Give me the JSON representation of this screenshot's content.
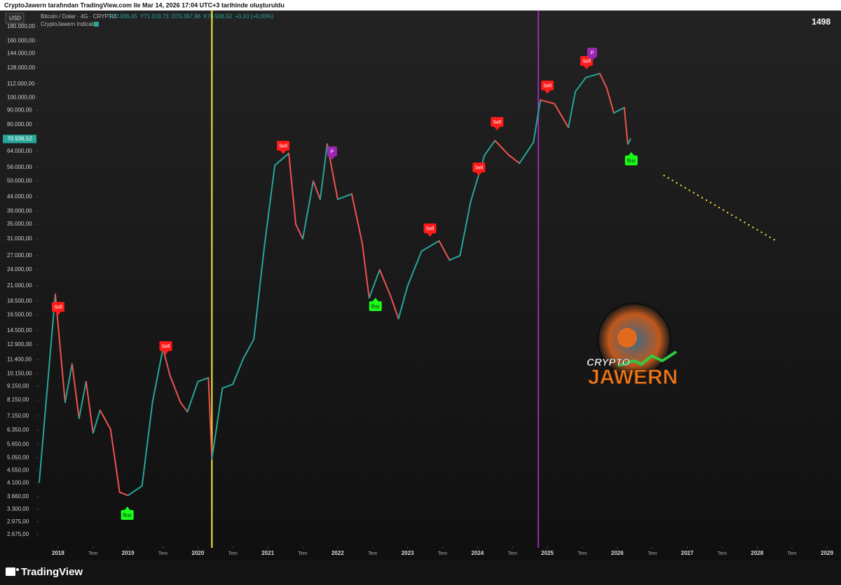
{
  "caption": "CryptoJawern tarafından TradingView.com ile Mar 14, 2026 17:04 UTC+3 tarihinde oluşturuldu",
  "footer": "TradingView",
  "chart_data": {
    "type": "line",
    "title": "Bitcoin / Dolar · 4G · CRYPTO",
    "ohlc": [
      "A70.936,45",
      "Y71.319,73",
      "D70.367,96",
      "K70.936,52",
      "+0,10 (+0,00%)"
    ],
    "indicator": "CryptoJawern Indicator",
    "currency": "USD",
    "bar_count": 1498,
    "log_scale": true,
    "grid": false,
    "up_color": "#26a69a",
    "down_color": "#ef5350",
    "last_price": {
      "value": 70936.52,
      "label": "70.936,52"
    },
    "xlim": [
      2017.72,
      2029.1
    ],
    "ylim": [
      2424,
      199800
    ],
    "xticks": [
      {
        "value": 2018,
        "label": "2018"
      },
      {
        "value": 2018.5,
        "label": "Tem"
      },
      {
        "value": 2019,
        "label": "2019"
      },
      {
        "value": 2019.5,
        "label": "Tem"
      },
      {
        "value": 2020,
        "label": "2020"
      },
      {
        "value": 2020.5,
        "label": "Tem"
      },
      {
        "value": 2021,
        "label": "2021"
      },
      {
        "value": 2021.5,
        "label": "Tem"
      },
      {
        "value": 2022,
        "label": "2022"
      },
      {
        "value": 2022.5,
        "label": "Tem"
      },
      {
        "value": 2023,
        "label": "2023"
      },
      {
        "value": 2023.5,
        "label": "Tem"
      },
      {
        "value": 2024,
        "label": "2024"
      },
      {
        "value": 2024.5,
        "label": "Tem"
      },
      {
        "value": 2025,
        "label": "2025"
      },
      {
        "value": 2025.5,
        "label": "Tem"
      },
      {
        "value": 2026,
        "label": "2026"
      },
      {
        "value": 2026.5,
        "label": "Tem"
      },
      {
        "value": 2027,
        "label": "2027"
      },
      {
        "value": 2027.5,
        "label": "Tem"
      },
      {
        "value": 2028,
        "label": "2028"
      },
      {
        "value": 2028.5,
        "label": "Tem"
      },
      {
        "value": 2029,
        "label": "2029"
      }
    ],
    "yticks": [
      {
        "value": 180000,
        "label": "180.000,00"
      },
      {
        "value": 160000,
        "label": "160.000,00"
      },
      {
        "value": 144000,
        "label": "144.000,00"
      },
      {
        "value": 128000,
        "label": "128.000,00"
      },
      {
        "value": 112000,
        "label": "112.000,00"
      },
      {
        "value": 100000,
        "label": "100.000,00"
      },
      {
        "value": 90000,
        "label": "90.000,00"
      },
      {
        "value": 80000,
        "label": "80.000,00"
      },
      {
        "value": 64000,
        "label": "64.000,00"
      },
      {
        "value": 56000,
        "label": "56.000,00"
      },
      {
        "value": 50000,
        "label": "50.000,00"
      },
      {
        "value": 44000,
        "label": "44.000,00"
      },
      {
        "value": 39000,
        "label": "39.000,00"
      },
      {
        "value": 35000,
        "label": "35.000,00"
      },
      {
        "value": 31000,
        "label": "31.000,00"
      },
      {
        "value": 27000,
        "label": "27.000,00"
      },
      {
        "value": 24000,
        "label": "24.000,00"
      },
      {
        "value": 21000,
        "label": "21.000,00"
      },
      {
        "value": 18500,
        "label": "18.500,00"
      },
      {
        "value": 16500,
        "label": "16.500,00"
      },
      {
        "value": 14500,
        "label": "14.500,00"
      },
      {
        "value": 12900,
        "label": "12.900,00"
      },
      {
        "value": 11400,
        "label": "11.400,00"
      },
      {
        "value": 10150,
        "label": "10.150,00"
      },
      {
        "value": 9150,
        "label": "9.150,00"
      },
      {
        "value": 8150,
        "label": "8.150,00"
      },
      {
        "value": 7150,
        "label": "7.150,00"
      },
      {
        "value": 6350,
        "label": "6.350,00"
      },
      {
        "value": 5650,
        "label": "5.650,00"
      },
      {
        "value": 5050,
        "label": "5.050,00"
      },
      {
        "value": 4550,
        "label": "4.550,00"
      },
      {
        "value": 4100,
        "label": "4.100,00"
      },
      {
        "value": 3660,
        "label": "3.660,00"
      },
      {
        "value": 3300,
        "label": "3.300,00"
      },
      {
        "value": 2975,
        "label": "2.975,00"
      },
      {
        "value": 2675,
        "label": "2.675,00"
      }
    ],
    "series": [
      {
        "name": "BTCUSD",
        "x": [
          2017.73,
          2017.96,
          2018.1,
          2018.2,
          2018.3,
          2018.4,
          2018.5,
          2018.6,
          2018.75,
          2018.88,
          2019.0,
          2019.2,
          2019.35,
          2019.5,
          2019.6,
          2019.75,
          2019.85,
          2020.0,
          2020.15,
          2020.2,
          2020.35,
          2020.5,
          2020.65,
          2020.8,
          2020.95,
          2021.1,
          2021.3,
          2021.4,
          2021.5,
          2021.65,
          2021.75,
          2021.85,
          2022.0,
          2022.2,
          2022.35,
          2022.45,
          2022.6,
          2022.75,
          2022.87,
          2023.0,
          2023.2,
          2023.45,
          2023.6,
          2023.75,
          2023.9,
          2024.1,
          2024.25,
          2024.45,
          2024.6,
          2024.8,
          2024.9,
          2025.1,
          2025.3,
          2025.4,
          2025.55,
          2025.75,
          2025.85,
          2025.95,
          2026.1,
          2026.15,
          2026.19
        ],
        "values": [
          4134,
          19600,
          8000,
          11000,
          7000,
          9500,
          6200,
          7500,
          6400,
          3800,
          3700,
          4000,
          8000,
          12500,
          10000,
          8000,
          7400,
          9500,
          9800,
          5000,
          9000,
          9300,
          11500,
          13500,
          29000,
          57000,
          63000,
          35000,
          31000,
          50000,
          43000,
          68000,
          43000,
          45000,
          30000,
          19000,
          24000,
          19500,
          16000,
          21000,
          28000,
          30500,
          26000,
          27000,
          42000,
          62000,
          70000,
          62000,
          58000,
          69000,
          98000,
          95000,
          78000,
          105000,
          118000,
          122000,
          108000,
          88000,
          92000,
          68000,
          70936.52
        ]
      }
    ],
    "vlines": [
      {
        "x": 2020.2,
        "color": "#ffeb3b"
      },
      {
        "x": 2024.87,
        "color": "#9c27b0"
      }
    ],
    "signals": [
      {
        "label": "Sell",
        "x": 2018.0,
        "y": 17650
      },
      {
        "label": "Buy",
        "x": 2018.99,
        "y": 3147
      },
      {
        "label": "Sell",
        "x": 2019.54,
        "y": 12750
      },
      {
        "label": "Sell",
        "x": 2021.22,
        "y": 67080
      },
      {
        "label": "P",
        "x": 2021.92,
        "y": 64050
      },
      {
        "label": "Buy",
        "x": 2022.54,
        "y": 17750
      },
      {
        "label": "Sell",
        "x": 2023.32,
        "y": 33810
      },
      {
        "label": "Sell",
        "x": 2024.02,
        "y": 56040
      },
      {
        "label": "Sell",
        "x": 2024.28,
        "y": 81730
      },
      {
        "label": "Sell",
        "x": 2025.0,
        "y": 110500
      },
      {
        "label": "Sell",
        "x": 2025.56,
        "y": 135400
      },
      {
        "label": "P",
        "x": 2025.64,
        "y": 145200
      },
      {
        "label": "Buy",
        "x": 2026.2,
        "y": 59390
      }
    ],
    "projection": {
      "x": [
        2026.66,
        2028.26
      ],
      "y": [
        52580,
        30640
      ],
      "color": "#ffeb3b"
    },
    "logo": [
      "CRYPTO",
      "JAWERN"
    ]
  }
}
